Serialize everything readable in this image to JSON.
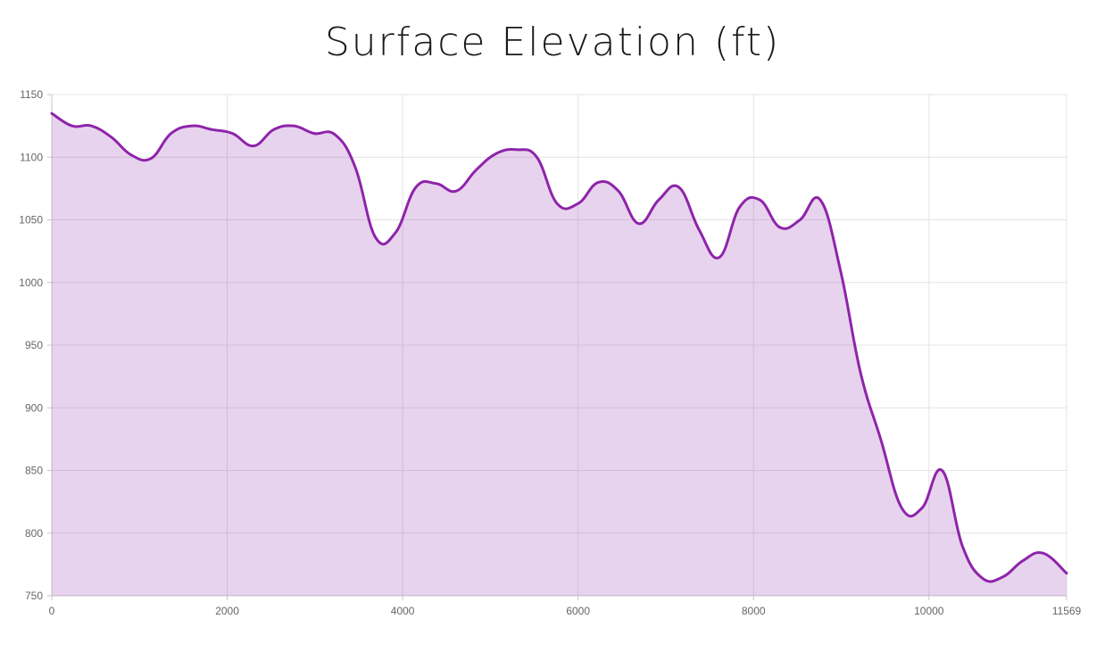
{
  "chart_data": {
    "type": "area",
    "title": "Surface Elevation (ft)",
    "xlabel": "",
    "ylabel": "",
    "xlim": [
      0,
      11569
    ],
    "ylim": [
      750,
      1150
    ],
    "x_ticks": [
      0,
      2000,
      4000,
      6000,
      8000,
      10000,
      11569
    ],
    "y_ticks": [
      750,
      800,
      850,
      900,
      950,
      1000,
      1050,
      1100,
      1150
    ],
    "grid": true,
    "legend": "none",
    "color": "#8e24aa",
    "fill_color": "rgba(142,36,170,0.2)",
    "x": [
      0,
      230,
      450,
      680,
      900,
      1130,
      1360,
      1600,
      1830,
      2060,
      2300,
      2530,
      2760,
      2990,
      3230,
      3460,
      3690,
      3920,
      4150,
      4380,
      4610,
      4840,
      5070,
      5300,
      5530,
      5760,
      6000,
      6230,
      6460,
      6690,
      6920,
      7150,
      7380,
      7610,
      7840,
      8070,
      8300,
      8530,
      8760,
      8990,
      9220,
      9450,
      9690,
      9920,
      10150,
      10380,
      10610,
      10840,
      11070,
      11300,
      11569
    ],
    "values": [
      1135,
      1125,
      1125,
      1116,
      1102,
      1099,
      1119,
      1125,
      1122,
      1119,
      1109,
      1122,
      1125,
      1119,
      1118,
      1092,
      1036,
      1040,
      1076,
      1079,
      1073,
      1090,
      1103,
      1106,
      1100,
      1063,
      1063,
      1080,
      1073,
      1047,
      1066,
      1076,
      1042,
      1020,
      1060,
      1066,
      1044,
      1050,
      1066,
      1010,
      928,
      875,
      820,
      820,
      850,
      790,
      764,
      765,
      778,
      784,
      768
    ]
  }
}
